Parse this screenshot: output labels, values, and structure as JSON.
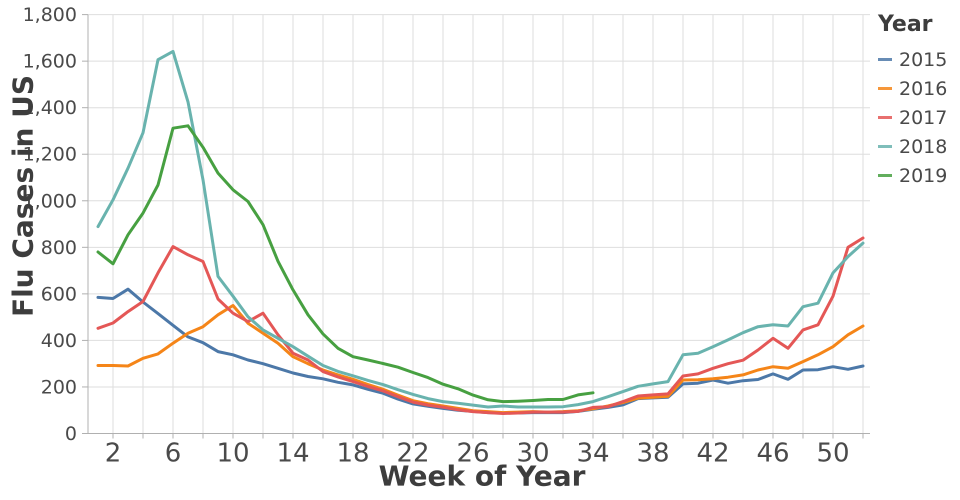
{
  "chart_data": {
    "type": "line",
    "xlabel": "Week of Year",
    "ylabel": "Flu Cases in US",
    "legend_title": "Year",
    "legend_position": "top-right",
    "grid": true,
    "xlim": [
      0.3,
      52.5
    ],
    "ylim": [
      0,
      1800
    ],
    "y_ticks": [
      0,
      200,
      400,
      600,
      800,
      1000,
      1200,
      1400,
      1600,
      1800
    ],
    "x_labeled_ticks": [
      2,
      6,
      10,
      14,
      18,
      22,
      26,
      30,
      34,
      38,
      42,
      46,
      50
    ],
    "x_gridline_step_weeks": 2,
    "weeks": [
      1,
      2,
      3,
      4,
      5,
      6,
      7,
      8,
      9,
      10,
      11,
      12,
      13,
      14,
      15,
      16,
      17,
      18,
      19,
      20,
      21,
      22,
      23,
      24,
      25,
      26,
      27,
      28,
      29,
      30,
      31,
      32,
      33,
      34,
      35,
      36,
      37,
      38,
      39,
      40,
      41,
      42,
      43,
      44,
      45,
      46,
      47,
      48,
      49,
      50,
      51,
      52
    ],
    "series": [
      {
        "name": "2015",
        "color": "#4c78a8",
        "values": [
          585,
          580,
          620,
          565,
          515,
          465,
          415,
          390,
          352,
          338,
          316,
          300,
          280,
          260,
          245,
          235,
          220,
          209,
          190,
          173,
          148,
          127,
          117,
          108,
          100,
          95,
          90,
          88,
          88,
          90,
          90,
          90,
          95,
          104,
          112,
          123,
          150,
          153,
          156,
          213,
          216,
          230,
          216,
          227,
          232,
          256,
          233,
          273,
          274,
          287,
          276,
          290
        ]
      },
      {
        "name": "2016",
        "color": "#f58518",
        "values": [
          292,
          292,
          290,
          323,
          342,
          388,
          431,
          459,
          510,
          550,
          474,
          431,
          388,
          330,
          300,
          273,
          252,
          233,
          210,
          190,
          165,
          141,
          128,
          118,
          108,
          98,
          94,
          90,
          92,
          94,
          92,
          94,
          98,
          106,
          118,
          133,
          152,
          156,
          160,
          230,
          231,
          235,
          242,
          252,
          273,
          287,
          280,
          309,
          338,
          373,
          424,
          462
        ]
      },
      {
        "name": "2017",
        "color": "#e45756",
        "values": [
          452,
          475,
          524,
          567,
          690,
          803,
          768,
          739,
          578,
          517,
          481,
          517,
          424,
          345,
          316,
          266,
          243,
          223,
          202,
          183,
          158,
          135,
          122,
          113,
          102,
          94,
          90,
          86,
          88,
          92,
          92,
          92,
          95,
          112,
          115,
          137,
          161,
          166,
          170,
          247,
          256,
          280,
          300,
          315,
          359,
          409,
          366,
          445,
          467,
          590,
          800,
          840
        ]
      },
      {
        "name": "2018",
        "color": "#69b3ae",
        "values": [
          889,
          1004,
          1140,
          1292,
          1606,
          1642,
          1425,
          1090,
          675,
          590,
          502,
          445,
          409,
          373,
          332,
          292,
          267,
          248,
          228,
          210,
          188,
          168,
          150,
          137,
          130,
          122,
          114,
          118,
          114,
          114,
          114,
          115,
          124,
          137,
          158,
          180,
          203,
          213,
          223,
          338,
          345,
          373,
          402,
          433,
          459,
          467,
          462,
          545,
          560,
          690,
          760,
          818
        ]
      },
      {
        "name": "2019",
        "color": "#47a041",
        "values": [
          780,
          729,
          854,
          947,
          1068,
          1312,
          1322,
          1230,
          1119,
          1047,
          997,
          897,
          740,
          617,
          510,
          428,
          366,
          330,
          316,
          301,
          285,
          262,
          240,
          212,
          192,
          165,
          145,
          137,
          139,
          142,
          146,
          146,
          166,
          175
        ]
      }
    ],
    "style": {
      "background": "#ffffff",
      "gridline_color": "#dedede",
      "axis_domain_color": "#b0b0b0",
      "tick_label_color": "#4a4a4a",
      "title_color": "#3d3d3d",
      "line_width": 3
    }
  }
}
